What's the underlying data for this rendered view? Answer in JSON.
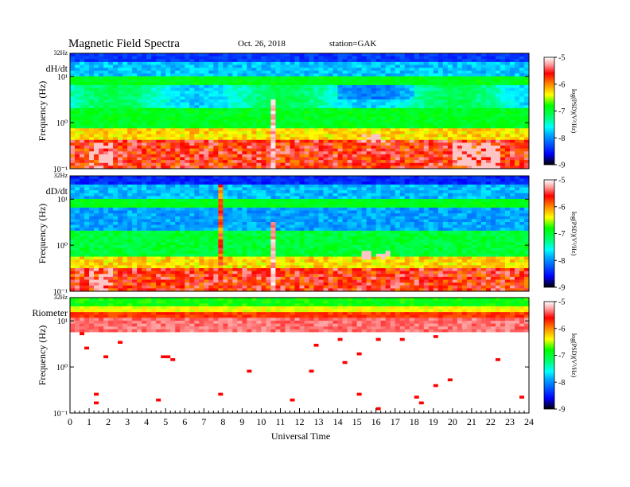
{
  "header": {
    "title": "Magnetic Field Spectra",
    "date": "Oct. 26, 2018",
    "station": "station=GAK"
  },
  "chart_data": [
    {
      "type": "heatmap",
      "panel_label": "dH/dt",
      "ylabel": "Frequency (Hz)",
      "yscale": "log",
      "ylim": [
        0.1,
        32
      ],
      "y_tick_labels": [
        "32Hz",
        "10¹",
        "10⁰",
        "10⁻¹"
      ],
      "xlim": [
        0,
        24
      ],
      "colorbar": {
        "label": "log(PSD)(V²/Hz)",
        "range": [
          -9,
          -5
        ],
        "tick_labels": [
          "-5",
          "-6",
          "-7",
          "-8",
          "-9"
        ]
      },
      "features": [
        "dark blue band near top 20-32 Hz",
        "cyan/green band around 1-10 Hz",
        "orange/red below 0.5 Hz",
        "spike near 10.6 UT",
        "white patches near 1-2 UT and 16-17 UT, 20-22 UT"
      ]
    },
    {
      "type": "heatmap",
      "panel_label": "dD/dt",
      "ylabel": "Frequency (Hz)",
      "yscale": "log",
      "ylim": [
        0.1,
        32
      ],
      "y_tick_labels": [
        "32Hz",
        "10¹",
        "10⁰",
        "10⁻¹"
      ],
      "xlim": [
        0,
        24
      ],
      "colorbar": {
        "label": "log(PSD)(V²/Hz)",
        "range": [
          -9,
          -5
        ],
        "tick_labels": [
          "-5",
          "-6",
          "-7",
          "-8",
          "-9"
        ]
      },
      "features": [
        "dark blue band near top 20-32 Hz",
        "blue-cyan band around 3-10 Hz",
        "spike near 7.9 UT and 10.6 UT",
        "white patches near 1.5 UT and 16 UT"
      ]
    },
    {
      "type": "heatmap",
      "panel_label": "Riometer",
      "ylabel": "Frequency (Hz)",
      "yscale": "log",
      "ylim": [
        0.1,
        32
      ],
      "y_tick_labels": [
        "32Hz",
        "10¹",
        "10⁰",
        "10⁻¹"
      ],
      "xlim": [
        0,
        24
      ],
      "colorbar": {
        "label": "log(PSD)(V²/Hz)",
        "range": [
          -9,
          -5
        ],
        "tick_labels": [
          "-5",
          "-6",
          "-7",
          "-8",
          "-9"
        ]
      },
      "features": [
        "green band near 20-32 Hz",
        "yellow/red band around 10-15 Hz",
        "mostly white below 5 Hz"
      ]
    }
  ],
  "x_axis": {
    "label": "Universal Time",
    "ticks": [
      "0",
      "1",
      "2",
      "3",
      "4",
      "5",
      "6",
      "7",
      "8",
      "9",
      "10",
      "11",
      "12",
      "13",
      "14",
      "15",
      "16",
      "17",
      "18",
      "19",
      "20",
      "21",
      "22",
      "23",
      "24"
    ]
  },
  "colors": {
    "scale": [
      "#000000",
      "#0000ff",
      "#00aaff",
      "#00ffff",
      "#00ff66",
      "#00ff00",
      "#ffff00",
      "#ff8800",
      "#ff0000",
      "#ffffff"
    ]
  }
}
